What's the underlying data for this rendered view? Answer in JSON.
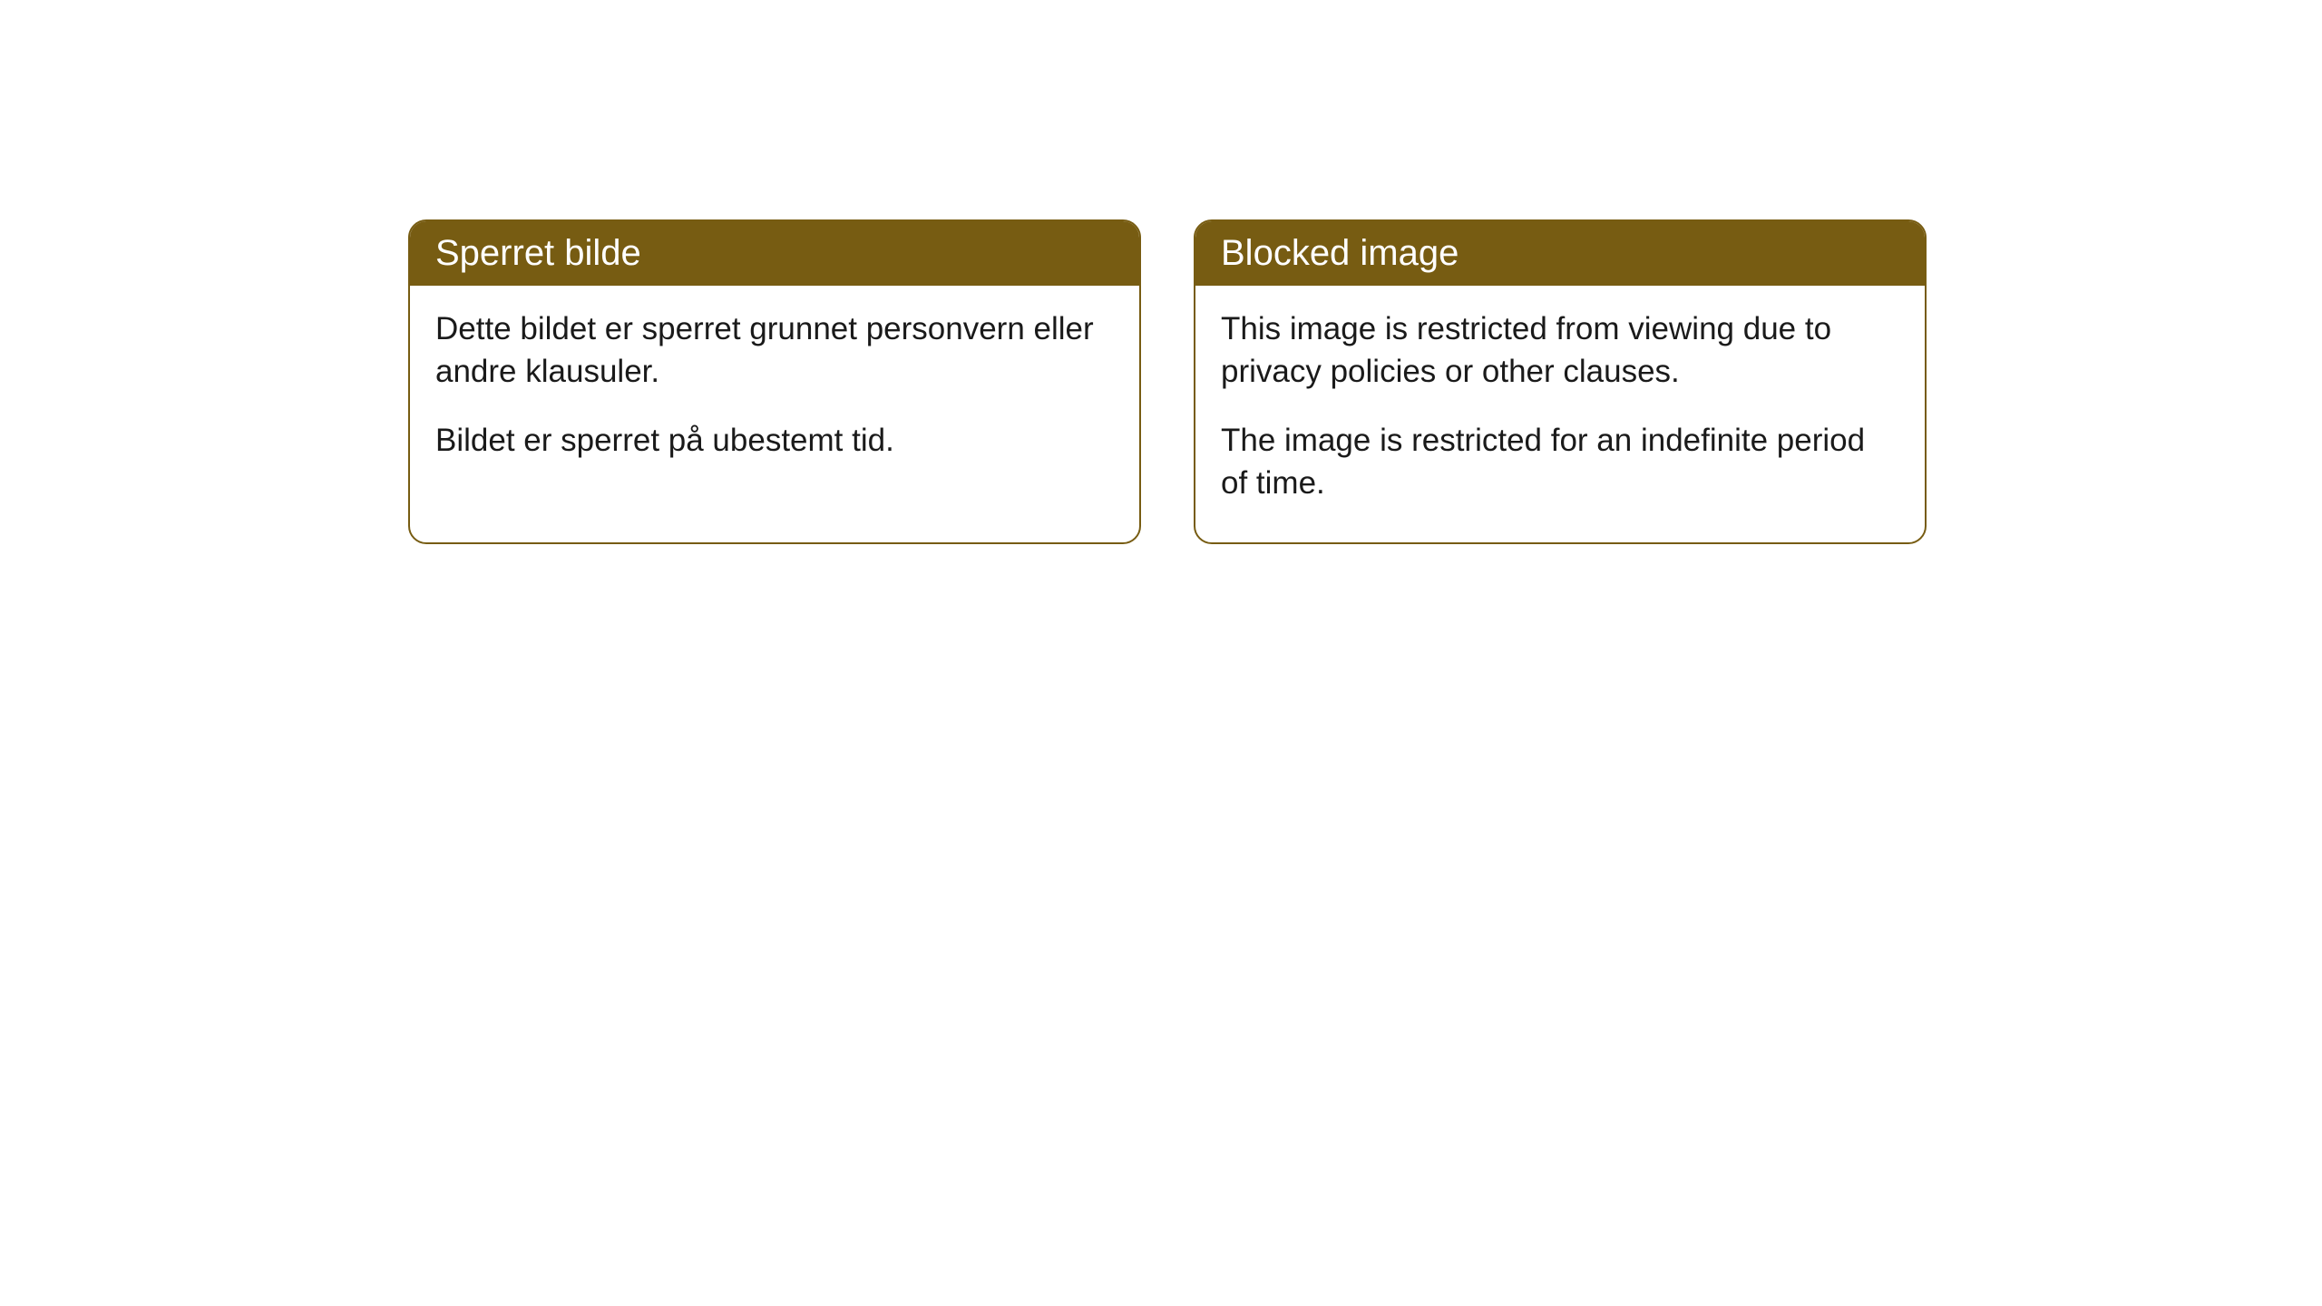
{
  "cards": [
    {
      "header": "Sperret bilde",
      "paragraph1": "Dette bildet er sperret grunnet personvern eller andre klausuler.",
      "paragraph2": "Bildet er sperret på ubestemt tid."
    },
    {
      "header": "Blocked image",
      "paragraph1": "This image is restricted from viewing due to privacy policies or other clauses.",
      "paragraph2": "The image is restricted for an indefinite period of time."
    }
  ],
  "styling": {
    "header_bg_color": "#775c12",
    "header_text_color": "#ffffff",
    "border_color": "#775c12",
    "body_text_color": "#1a1a1a",
    "card_bg_color": "#ffffff",
    "page_bg_color": "#ffffff",
    "border_radius": 20,
    "header_fontsize": 40,
    "body_fontsize": 35
  }
}
